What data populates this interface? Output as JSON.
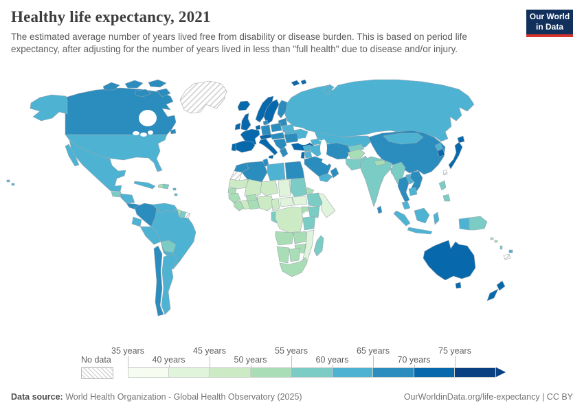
{
  "header": {
    "title": "Healthy life expectancy, 2021",
    "subtitle": "The estimated average number of years lived free from disability or disease burden. This is based on period life expectancy, after adjusting for the number of years lived in less than \"full health\" due to disease and/or injury.",
    "logo": {
      "line1": "Our World",
      "line2": "in Data",
      "background": "#12305c",
      "accent": "#d7342c"
    }
  },
  "footer": {
    "source_label": "Data source:",
    "source_text": " World Health Organization - Global Health Observatory (2025)",
    "link_text": "OurWorldinData.org/life-expectancy | CC BY"
  },
  "chart_data": {
    "type": "choropleth_map",
    "title": "Healthy life expectancy, 2021",
    "unit": "years",
    "legend": {
      "no_data_label": "No data",
      "tick_labels": [
        "35 years",
        "40 years",
        "45 years",
        "50 years",
        "55 years",
        "60 years",
        "65 years",
        "70 years",
        "75 years"
      ],
      "bins": [
        {
          "label": "35-40",
          "color": "#f7fcf0"
        },
        {
          "label": "40-45",
          "color": "#e0f3db"
        },
        {
          "label": "45-50",
          "color": "#ccebc5"
        },
        {
          "label": "50-55",
          "color": "#a8ddb5"
        },
        {
          "label": "55-60",
          "color": "#7bccc4"
        },
        {
          "label": "60-65",
          "color": "#4eb3d3"
        },
        {
          "label": "65-70",
          "color": "#2b8cbe"
        },
        {
          "label": "70-75",
          "color": "#0868ac"
        },
        {
          "label": "75+",
          "color": "#084081"
        }
      ],
      "no_data_pattern": "diagonal-hatch"
    },
    "regions": [
      {
        "name": "greenland",
        "bin": "No data",
        "color": "no-data"
      },
      {
        "name": "western-sahara",
        "bin": "No data",
        "color": "no-data"
      },
      {
        "name": "french-guiana",
        "bin": "No data",
        "color": "no-data"
      },
      {
        "name": "taiwan",
        "bin": "No data",
        "color": "no-data"
      },
      {
        "name": "new-caledonia",
        "bin": "No data",
        "color": "no-data"
      },
      {
        "name": "chad",
        "bin": "40-45",
        "color": "#e0f3db"
      },
      {
        "name": "central-african-republic",
        "bin": "40-45",
        "color": "#e0f3db"
      },
      {
        "name": "south-sudan",
        "bin": "40-45",
        "color": "#e0f3db"
      },
      {
        "name": "somalia",
        "bin": "40-45",
        "color": "#e0f3db"
      },
      {
        "name": "mozambique",
        "bin": "40-45",
        "color": "#e0f3db"
      },
      {
        "name": "mauritania",
        "bin": "45-50",
        "color": "#ccebc5"
      },
      {
        "name": "mali",
        "bin": "45-50",
        "color": "#ccebc5"
      },
      {
        "name": "niger",
        "bin": "45-50",
        "color": "#ccebc5"
      },
      {
        "name": "nigeria",
        "bin": "45-50",
        "color": "#ccebc5"
      },
      {
        "name": "ivory-coast",
        "bin": "45-50",
        "color": "#ccebc5"
      },
      {
        "name": "cameroon",
        "bin": "45-50",
        "color": "#ccebc5"
      },
      {
        "name": "dr-congo",
        "bin": "45-50",
        "color": "#ccebc5"
      },
      {
        "name": "senegal",
        "bin": "50-55",
        "color": "#a8ddb5"
      },
      {
        "name": "guinea",
        "bin": "50-55",
        "color": "#a8ddb5"
      },
      {
        "name": "sierra-leone-liberia",
        "bin": "50-55",
        "color": "#a8ddb5"
      },
      {
        "name": "ghana-togo-benin",
        "bin": "50-55",
        "color": "#a8ddb5"
      },
      {
        "name": "burkina-faso",
        "bin": "50-55",
        "color": "#a8ddb5"
      },
      {
        "name": "eritrea",
        "bin": "50-55",
        "color": "#a8ddb5"
      },
      {
        "name": "uganda",
        "bin": "50-55",
        "color": "#a8ddb5"
      },
      {
        "name": "angola",
        "bin": "50-55",
        "color": "#a8ddb5"
      },
      {
        "name": "zambia",
        "bin": "50-55",
        "color": "#a8ddb5"
      },
      {
        "name": "zimbabwe",
        "bin": "50-55",
        "color": "#a8ddb5"
      },
      {
        "name": "namibia",
        "bin": "50-55",
        "color": "#a8ddb5"
      },
      {
        "name": "botswana",
        "bin": "50-55",
        "color": "#a8ddb5"
      },
      {
        "name": "south-africa",
        "bin": "50-55",
        "color": "#a8ddb5"
      },
      {
        "name": "guyana",
        "bin": "50-55",
        "color": "#a8ddb5"
      },
      {
        "name": "haiti",
        "bin": "50-55",
        "color": "#a8ddb5"
      },
      {
        "name": "afghanistan",
        "bin": "50-55",
        "color": "#a8ddb5"
      },
      {
        "name": "nepal",
        "bin": "50-55",
        "color": "#a8ddb5"
      },
      {
        "name": "solomon-islands",
        "bin": "50-55",
        "color": "#a8ddb5"
      },
      {
        "name": "sudan",
        "bin": "55-60",
        "color": "#7bccc4"
      },
      {
        "name": "ethiopia",
        "bin": "55-60",
        "color": "#7bccc4"
      },
      {
        "name": "kenya",
        "bin": "55-60",
        "color": "#7bccc4"
      },
      {
        "name": "tanzania",
        "bin": "55-60",
        "color": "#7bccc4"
      },
      {
        "name": "gabon-congo",
        "bin": "55-60",
        "color": "#7bccc4"
      },
      {
        "name": "madagascar",
        "bin": "55-60",
        "color": "#7bccc4"
      },
      {
        "name": "bolivia",
        "bin": "55-60",
        "color": "#7bccc4"
      },
      {
        "name": "suriname",
        "bin": "55-60",
        "color": "#7bccc4"
      },
      {
        "name": "guatemala",
        "bin": "55-60",
        "color": "#7bccc4"
      },
      {
        "name": "dominican-republic",
        "bin": "55-60",
        "color": "#7bccc4"
      },
      {
        "name": "india",
        "bin": "55-60",
        "color": "#7bccc4"
      },
      {
        "name": "pakistan",
        "bin": "55-60",
        "color": "#7bccc4"
      },
      {
        "name": "myanmar",
        "bin": "55-60",
        "color": "#7bccc4"
      },
      {
        "name": "bangladesh",
        "bin": "55-60",
        "color": "#7bccc4"
      },
      {
        "name": "philippines",
        "bin": "55-60",
        "color": "#7bccc4"
      },
      {
        "name": "papua-new-guinea",
        "bin": "55-60",
        "color": "#7bccc4"
      },
      {
        "name": "kyrgyzstan-tajikistan",
        "bin": "55-60",
        "color": "#7bccc4"
      },
      {
        "name": "vanuatu",
        "bin": "55-60",
        "color": "#7bccc4"
      },
      {
        "name": "united-states",
        "bin": "60-65",
        "color": "#4eb3d3"
      },
      {
        "name": "mexico",
        "bin": "60-65",
        "color": "#4eb3d3"
      },
      {
        "name": "cuba",
        "bin": "60-65",
        "color": "#4eb3d3"
      },
      {
        "name": "lesser-antilles",
        "bin": "60-65",
        "color": "#4eb3d3"
      },
      {
        "name": "honduras-nicaragua",
        "bin": "60-65",
        "color": "#4eb3d3"
      },
      {
        "name": "venezuela",
        "bin": "60-65",
        "color": "#4eb3d3"
      },
      {
        "name": "ecuador",
        "bin": "60-65",
        "color": "#4eb3d3"
      },
      {
        "name": "peru",
        "bin": "60-65",
        "color": "#4eb3d3"
      },
      {
        "name": "brazil",
        "bin": "60-65",
        "color": "#4eb3d3"
      },
      {
        "name": "argentina",
        "bin": "60-65",
        "color": "#4eb3d3"
      },
      {
        "name": "russia",
        "bin": "60-65",
        "color": "#4eb3d3"
      },
      {
        "name": "kazakhstan",
        "bin": "60-65",
        "color": "#4eb3d3"
      },
      {
        "name": "uzbekistan-turkmenistan",
        "bin": "60-65",
        "color": "#4eb3d3"
      },
      {
        "name": "caucasus",
        "bin": "60-65",
        "color": "#4eb3d3"
      },
      {
        "name": "mongolia",
        "bin": "60-65",
        "color": "#4eb3d3"
      },
      {
        "name": "ukraine",
        "bin": "60-65",
        "color": "#4eb3d3"
      },
      {
        "name": "belarus",
        "bin": "60-65",
        "color": "#4eb3d3"
      },
      {
        "name": "libya",
        "bin": "60-65",
        "color": "#4eb3d3"
      },
      {
        "name": "syria",
        "bin": "60-65",
        "color": "#4eb3d3"
      },
      {
        "name": "jordan",
        "bin": "60-65",
        "color": "#4eb3d3"
      },
      {
        "name": "iraq",
        "bin": "60-65",
        "color": "#4eb3d3"
      },
      {
        "name": "yemen",
        "bin": "60-65",
        "color": "#4eb3d3"
      },
      {
        "name": "north-korea",
        "bin": "60-65",
        "color": "#4eb3d3"
      },
      {
        "name": "laos",
        "bin": "60-65",
        "color": "#4eb3d3"
      },
      {
        "name": "cambodia",
        "bin": "60-65",
        "color": "#4eb3d3"
      },
      {
        "name": "malaysia",
        "bin": "60-65",
        "color": "#4eb3d3"
      },
      {
        "name": "indonesia",
        "bin": "60-65",
        "color": "#4eb3d3"
      },
      {
        "name": "fiji",
        "bin": "60-65",
        "color": "#4eb3d3"
      },
      {
        "name": "canada",
        "bin": "65-70",
        "color": "#2b8cbe"
      },
      {
        "name": "colombia",
        "bin": "65-70",
        "color": "#2b8cbe"
      },
      {
        "name": "chile",
        "bin": "65-70",
        "color": "#2b8cbe"
      },
      {
        "name": "costa-rica-panama",
        "bin": "65-70",
        "color": "#2b8cbe"
      },
      {
        "name": "finland",
        "bin": "65-70",
        "color": "#2b8cbe"
      },
      {
        "name": "denmark",
        "bin": "65-70",
        "color": "#2b8cbe"
      },
      {
        "name": "germany",
        "bin": "65-70",
        "color": "#2b8cbe"
      },
      {
        "name": "poland",
        "bin": "65-70",
        "color": "#2b8cbe"
      },
      {
        "name": "czechia-hungary",
        "bin": "65-70",
        "color": "#2b8cbe"
      },
      {
        "name": "balkans",
        "bin": "65-70",
        "color": "#2b8cbe"
      },
      {
        "name": "greece",
        "bin": "65-70",
        "color": "#2b8cbe"
      },
      {
        "name": "romania-bulgaria",
        "bin": "65-70",
        "color": "#2b8cbe"
      },
      {
        "name": "baltics",
        "bin": "65-70",
        "color": "#2b8cbe"
      },
      {
        "name": "china",
        "bin": "65-70",
        "color": "#2b8cbe"
      },
      {
        "name": "iran",
        "bin": "65-70",
        "color": "#2b8cbe"
      },
      {
        "name": "saudi-arabia",
        "bin": "65-70",
        "color": "#2b8cbe"
      },
      {
        "name": "oman",
        "bin": "65-70",
        "color": "#2b8cbe"
      },
      {
        "name": "morocco",
        "bin": "65-70",
        "color": "#2b8cbe"
      },
      {
        "name": "algeria",
        "bin": "65-70",
        "color": "#2b8cbe"
      },
      {
        "name": "tunisia",
        "bin": "65-70",
        "color": "#2b8cbe"
      },
      {
        "name": "egypt",
        "bin": "65-70",
        "color": "#2b8cbe"
      },
      {
        "name": "sri-lanka",
        "bin": "65-70",
        "color": "#2b8cbe"
      },
      {
        "name": "thailand",
        "bin": "65-70",
        "color": "#2b8cbe"
      },
      {
        "name": "vietnam",
        "bin": "65-70",
        "color": "#2b8cbe"
      },
      {
        "name": "iceland",
        "bin": "70-75",
        "color": "#0868ac"
      },
      {
        "name": "united-kingdom",
        "bin": "70-75",
        "color": "#0868ac"
      },
      {
        "name": "ireland",
        "bin": "70-75",
        "color": "#0868ac"
      },
      {
        "name": "norway",
        "bin": "70-75",
        "color": "#0868ac"
      },
      {
        "name": "sweden",
        "bin": "70-75",
        "color": "#0868ac"
      },
      {
        "name": "france",
        "bin": "70-75",
        "color": "#0868ac"
      },
      {
        "name": "benelux",
        "bin": "70-75",
        "color": "#0868ac"
      },
      {
        "name": "spain",
        "bin": "70-75",
        "color": "#0868ac"
      },
      {
        "name": "portugal",
        "bin": "70-75",
        "color": "#0868ac"
      },
      {
        "name": "italy",
        "bin": "70-75",
        "color": "#0868ac"
      },
      {
        "name": "switzerland-austria",
        "bin": "70-75",
        "color": "#0868ac"
      },
      {
        "name": "turkey",
        "bin": "70-75",
        "color": "#0868ac"
      },
      {
        "name": "israel",
        "bin": "70-75",
        "color": "#0868ac"
      },
      {
        "name": "japan",
        "bin": "70-75",
        "color": "#0868ac"
      },
      {
        "name": "south-korea",
        "bin": "70-75",
        "color": "#0868ac"
      },
      {
        "name": "australia",
        "bin": "70-75",
        "color": "#0868ac"
      },
      {
        "name": "new-zealand",
        "bin": "70-75",
        "color": "#0868ac"
      }
    ]
  }
}
